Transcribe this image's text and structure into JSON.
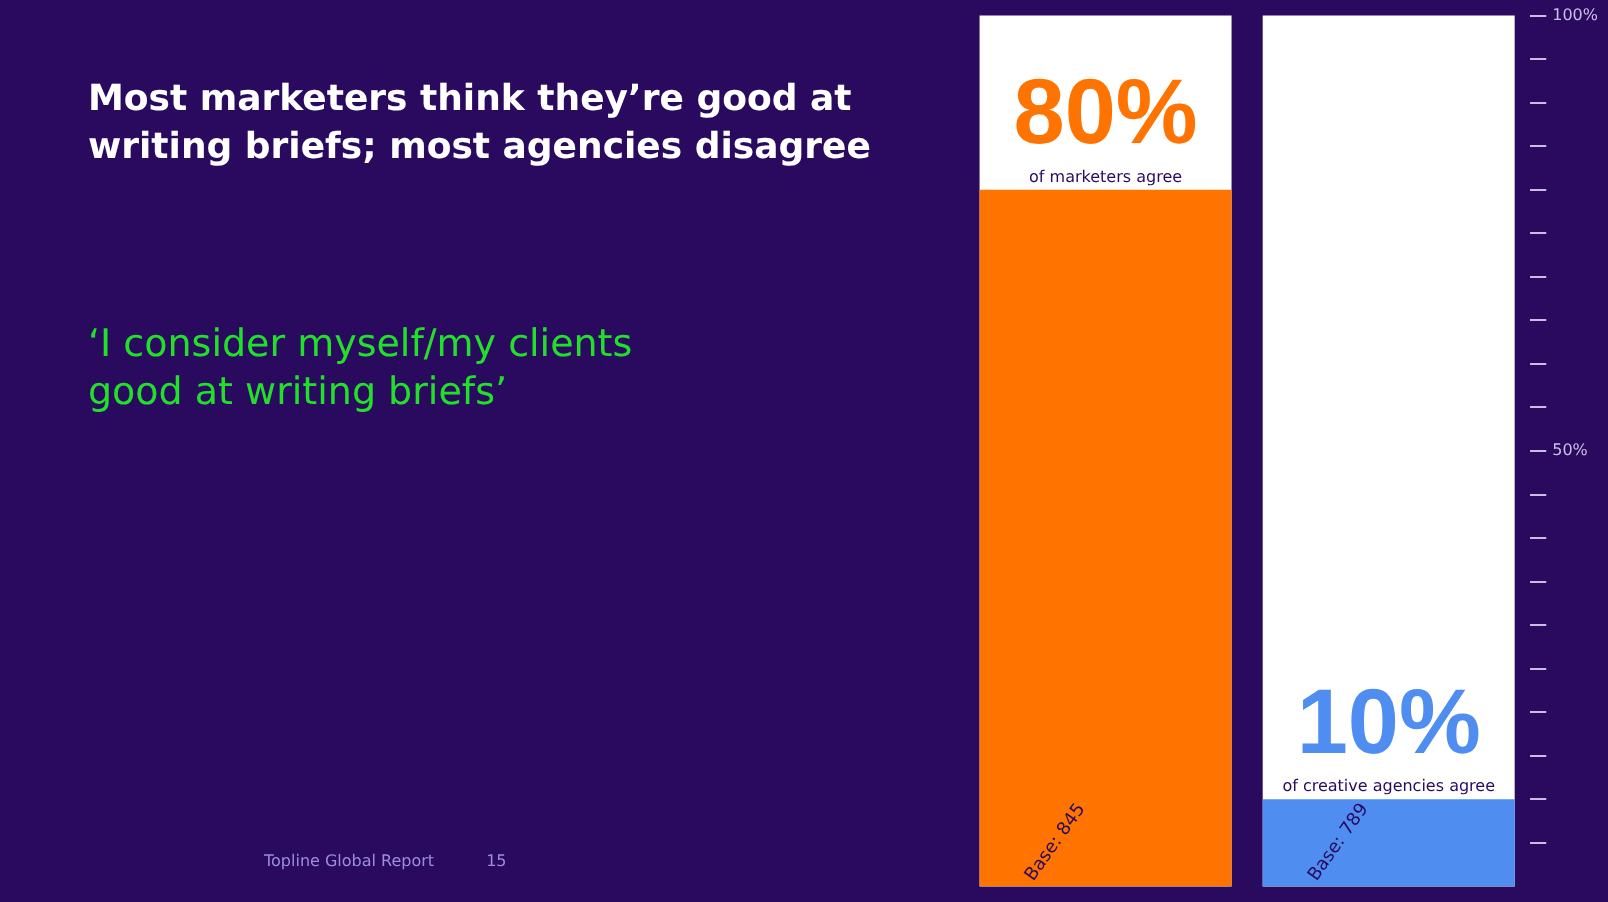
{
  "chart_data": {
    "type": "bar",
    "title": "Most marketers think they’re good at writing briefs; most agencies disagree",
    "subtitle": "‘I consider myself/my clients good at writing briefs’",
    "categories": [
      "of marketers agree",
      "of creative agencies agree"
    ],
    "values": [
      80,
      10
    ],
    "colors": [
      "#ff7300",
      "#4f8ef0"
    ],
    "value_labels": [
      "80%",
      "10%"
    ],
    "ylim": [
      0,
      100
    ],
    "yticks": [
      {
        "value": 5,
        "label": null
      },
      {
        "value": 10,
        "label": null
      },
      {
        "value": 15,
        "label": null
      },
      {
        "value": 20,
        "label": null
      },
      {
        "value": 25,
        "label": null
      },
      {
        "value": 30,
        "label": null
      },
      {
        "value": 35,
        "label": null
      },
      {
        "value": 40,
        "label": null
      },
      {
        "value": 45,
        "label": null
      },
      {
        "value": 50,
        "label": "50%"
      },
      {
        "value": 55,
        "label": null
      },
      {
        "value": 60,
        "label": null
      },
      {
        "value": 65,
        "label": null
      },
      {
        "value": 70,
        "label": null
      },
      {
        "value": 75,
        "label": null
      },
      {
        "value": 80,
        "label": null
      },
      {
        "value": 85,
        "label": null
      },
      {
        "value": 90,
        "label": null
      },
      {
        "value": 95,
        "label": null
      },
      {
        "value": 100,
        "label": "100%"
      }
    ],
    "grid": false,
    "legend": false,
    "annotations": [
      "Base: 845",
      "Base: 789",
      "Topline Global Report",
      "15"
    ]
  }
}
